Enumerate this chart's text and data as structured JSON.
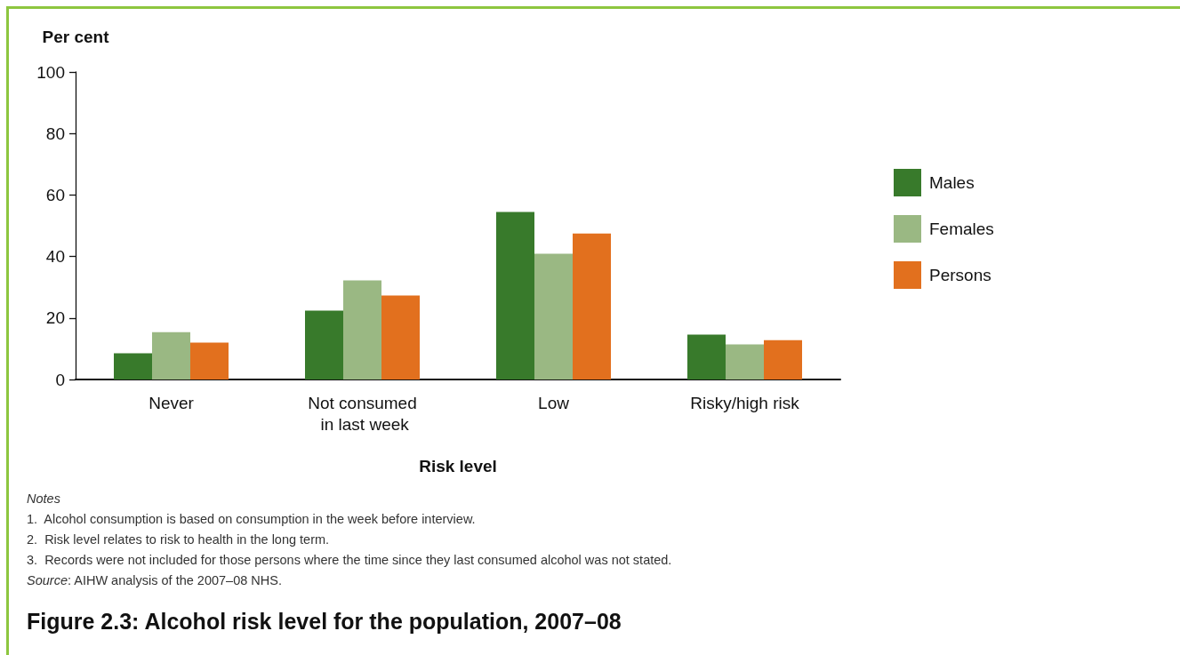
{
  "chart_data": {
    "type": "bar",
    "title": "Figure 2.3: Alcohol risk level for the population, 2007–08",
    "xlabel": "Risk level",
    "ylabel": "Per cent",
    "categories": [
      "Never",
      "Not consumed in last week",
      "Low",
      "Risky/high risk"
    ],
    "series": [
      {
        "name": "Males",
        "color": "#387a2b",
        "values": [
          8.5,
          22.4,
          54.5,
          14.6
        ]
      },
      {
        "name": "Females",
        "color": "#9ab883",
        "values": [
          15.4,
          32.2,
          40.9,
          11.4
        ]
      },
      {
        "name": "Persons",
        "color": "#e2701e",
        "values": [
          12.0,
          27.3,
          47.5,
          12.8
        ]
      }
    ],
    "ylim": [
      0,
      100
    ],
    "yticks": [
      0,
      20,
      40,
      60,
      80,
      100
    ],
    "grid": false,
    "legend": "right",
    "annotations": [
      "Notes",
      "1.  Alcohol consumption is based on consumption in the week before interview.",
      "2.  Risk level relates to risk to health in the long term.",
      "3.  Records were not included for those persons where the time since they last consumed alcohol was not stated.",
      "Source: AIHW analysis of the 2007–08 NHS."
    ]
  }
}
